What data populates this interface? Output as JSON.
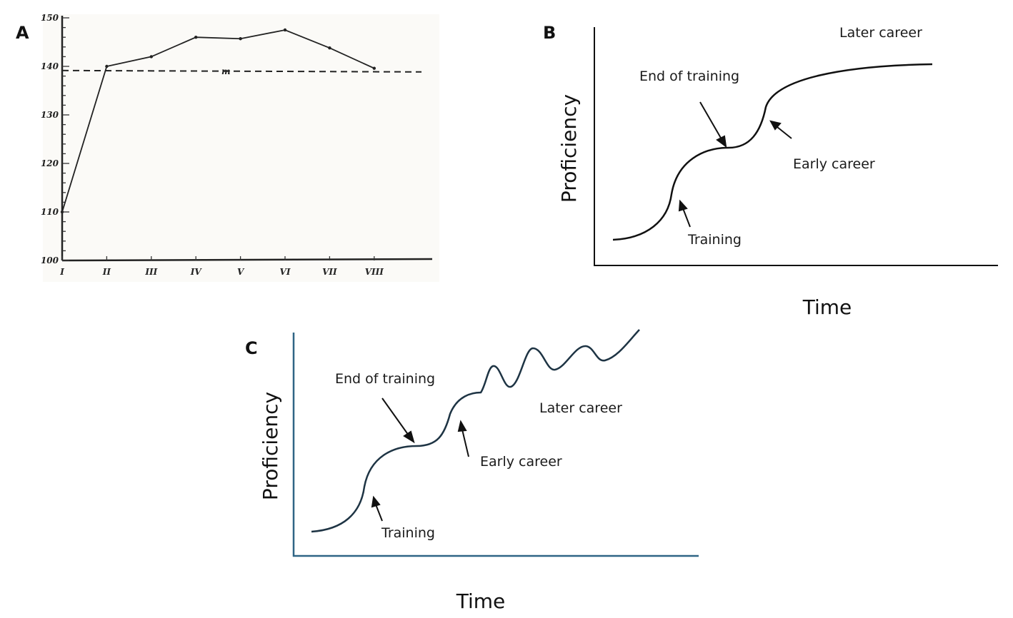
{
  "chart_data": [
    {
      "panel": "A",
      "type": "line",
      "categories": [
        "I",
        "II",
        "III",
        "IV",
        "V",
        "VI",
        "VII",
        "VIII"
      ],
      "values": [
        110,
        140,
        142,
        146,
        145.7,
        147.5,
        143.8,
        139.6
      ],
      "ylim": [
        100,
        150
      ],
      "yticks": [
        "100",
        "110",
        "120",
        "130",
        "140",
        "150"
      ],
      "reference_line": {
        "label": "m",
        "value": 139,
        "style": "dashed"
      },
      "grid": false,
      "color": "#222222"
    },
    {
      "panel": "B",
      "type": "line",
      "xlabel": "Time",
      "ylabel": "Proficiency",
      "annotations": [
        "Later career",
        "End of training",
        "Early career",
        "Training"
      ],
      "axis_color": "#111111",
      "color": "#111111"
    },
    {
      "panel": "C",
      "type": "line",
      "xlabel": "Time",
      "ylabel": "Proficiency",
      "annotations": [
        "End of training",
        "Later career",
        "Early career",
        "Training"
      ],
      "axis_color": "#2f6585",
      "color": "#1e3444"
    }
  ]
}
